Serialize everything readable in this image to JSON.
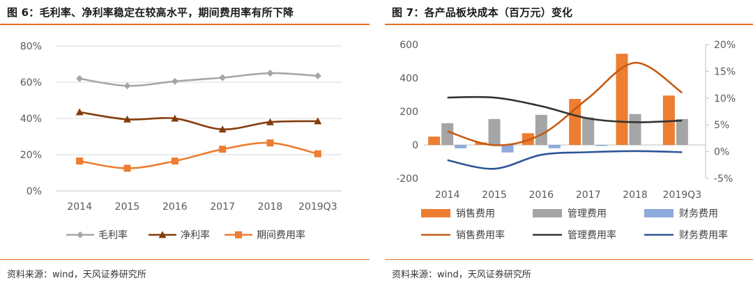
{
  "left": {
    "title": "图 6：毛利率、净利率稳定在较高水平，期间费用率有所下降",
    "source": "资料来源：wind，天风证券研究所"
  },
  "right": {
    "title": "图 7：各产品板块成本（百万元）变化",
    "source": "资料来源：wind，天风证券研究所"
  },
  "colors": {
    "accent": "#e0701e",
    "gray_line": "#a6a6a6",
    "brown": "#843c0c",
    "orange": "#ed7d31",
    "bar_gray": "#a5a5a5",
    "bar_blue": "#8faadc",
    "dark": "#333333",
    "navy": "#2f5597"
  },
  "chart_data": [
    {
      "type": "line",
      "categories": [
        "2014",
        "2015",
        "2016",
        "2017",
        "2018",
        "2019Q3"
      ],
      "yticks": [
        "0%",
        "20%",
        "40%",
        "60%",
        "80%"
      ],
      "ylim": [
        0,
        80
      ],
      "grid": true,
      "legend_position": "bottom",
      "series": [
        {
          "name": "毛利率",
          "values": [
            62,
            58,
            60.5,
            62.5,
            65,
            63.5
          ],
          "marker": "diamond",
          "color": "#a6a6a6"
        },
        {
          "name": "净利率",
          "values": [
            43.5,
            39.5,
            40,
            34,
            38,
            38.5
          ],
          "marker": "triangle",
          "color": "#843c0c"
        },
        {
          "name": "期间费用率",
          "values": [
            16.5,
            12.5,
            16.5,
            23,
            26.5,
            20.5
          ],
          "marker": "square",
          "color": "#ed7d31"
        }
      ]
    },
    {
      "type": "bar",
      "categories": [
        "2014",
        "2015",
        "2016",
        "2017",
        "2018",
        "2019Q3"
      ],
      "yticks_left": [
        "-200",
        "0",
        "200",
        "400",
        "600"
      ],
      "ylim_left": [
        -200,
        600
      ],
      "yticks_right": [
        "-5%",
        "0%",
        "5%",
        "10%",
        "15%",
        "20%"
      ],
      "ylim_right": [
        -5,
        20
      ],
      "grid": false,
      "legend_position": "bottom",
      "bar_series": [
        {
          "name": "销售费用",
          "values": [
            50,
            15,
            70,
            275,
            545,
            295
          ],
          "color": "#ed7d31"
        },
        {
          "name": "管理费用",
          "values": [
            130,
            155,
            180,
            165,
            185,
            155
          ],
          "color": "#a5a5a5"
        },
        {
          "name": "财务费用",
          "values": [
            -20,
            -45,
            -20,
            -5,
            0,
            0
          ],
          "color": "#8faadc"
        }
      ],
      "line_series": [
        {
          "name": "销售费用率",
          "values": [
            3.8,
            1.2,
            3.2,
            10.0,
            16.6,
            11.0
          ],
          "color": "#c55a11"
        },
        {
          "name": "管理费用率",
          "values": [
            10.1,
            10.1,
            8.5,
            6.2,
            5.5,
            5.8
          ],
          "color": "#333333"
        },
        {
          "name": "财务费用率",
          "values": [
            -1.6,
            -3.2,
            -0.6,
            -0.1,
            0.1,
            -0.1
          ],
          "color": "#2f5597"
        }
      ]
    }
  ]
}
